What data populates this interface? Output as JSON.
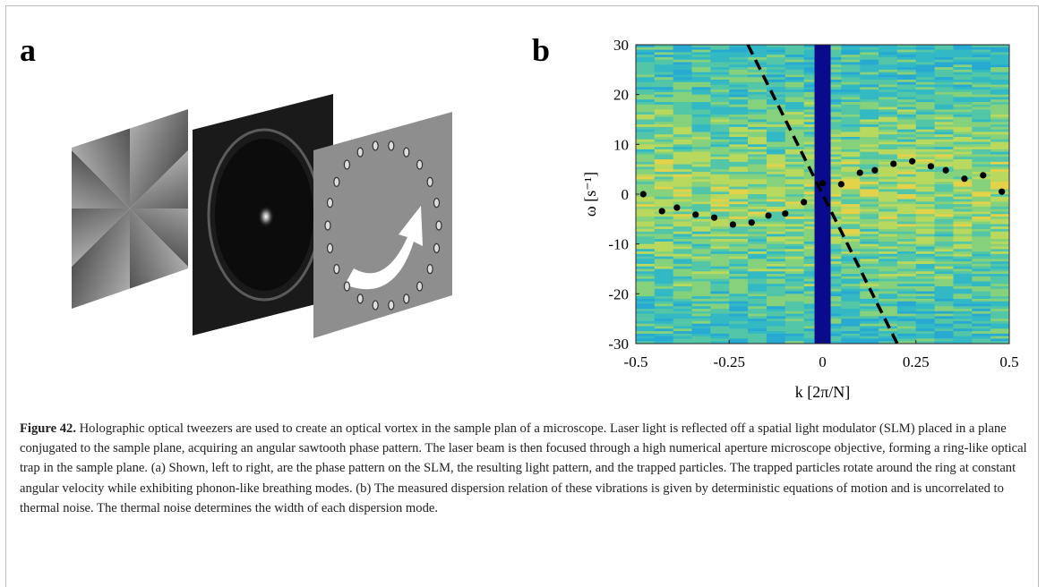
{
  "panels": {
    "a": "a",
    "b": "b"
  },
  "chart_data": {
    "type": "scatter",
    "xlabel": "k [2π/N]",
    "ylabel": "ω [s⁻¹]",
    "xlim": [
      -0.5,
      0.5
    ],
    "xticks": [
      -0.5,
      -0.25,
      0,
      0.25,
      0.5
    ],
    "ylim": [
      -30,
      30
    ],
    "yticks": [
      -30,
      -20,
      -10,
      0,
      10,
      20,
      30
    ],
    "x": [
      -0.48,
      -0.43,
      -0.39,
      -0.34,
      -0.29,
      -0.24,
      -0.19,
      -0.145,
      -0.1,
      -0.05,
      0,
      0.05,
      0.1,
      0.14,
      0.19,
      0.24,
      0.29,
      0.33,
      0.38,
      0.43,
      0.48
    ],
    "series": [
      {
        "color": "#000000",
        "values": [
          0,
          -3.4,
          -2.7,
          -4.1,
          -4.7,
          -6.1,
          -5.7,
          -4.3,
          -3.9,
          -1.6,
          2.2,
          2,
          4.3,
          4.8,
          6.1,
          6.6,
          5.6,
          4.8,
          3.1,
          3.8,
          0.5
        ]
      }
    ],
    "dashed_line": {
      "color": "#000000",
      "x": [
        -0.2,
        0.2
      ],
      "values": [
        30,
        -30
      ]
    }
  },
  "caption": {
    "label": "Figure 42.",
    "text": "Holographic optical tweezers are used to create an optical vortex in the sample plan of a microscope. Laser light is reflected off a spatial light modulator (SLM) placed in a plane conjugated to the sample plane, acquiring an angular sawtooth phase pattern. The laser beam is then focused through a high numerical aperture microscope objective, forming a ring-like optical trap in the sample plane. (a) Shown, left to right, are the phase pattern on the SLM, the resulting light pattern, and the trapped particles. The trapped particles rotate around the ring at constant angular velocity while exhibiting phonon-like breathing modes. (b) The measured dispersion relation of these vibrations is given by deterministic equations of motion and is uncorrelated to thermal noise. The thermal noise determines the width of each dispersion mode."
  }
}
